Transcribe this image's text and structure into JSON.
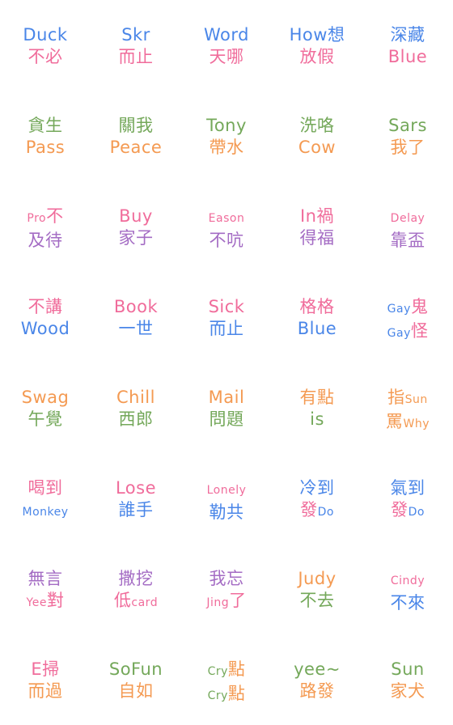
{
  "colors": {
    "blue": "#4a86e8",
    "pink": "#f06c9b",
    "green": "#74a85a",
    "orange": "#f49a52",
    "purple": "#a46cc4"
  },
  "stickers": [
    {
      "l1": [
        {
          "t": "Duck",
          "c": "blue"
        }
      ],
      "l2": [
        {
          "t": "不必",
          "c": "pink"
        }
      ]
    },
    {
      "l1": [
        {
          "t": "Skr",
          "c": "blue"
        }
      ],
      "l2": [
        {
          "t": "而止",
          "c": "pink"
        }
      ]
    },
    {
      "l1": [
        {
          "t": "Word",
          "c": "blue"
        }
      ],
      "l2": [
        {
          "t": "天哪",
          "c": "pink"
        }
      ]
    },
    {
      "l1": [
        {
          "t": "How想",
          "c": "blue"
        }
      ],
      "l2": [
        {
          "t": "放假",
          "c": "pink"
        }
      ]
    },
    {
      "l1": [
        {
          "t": "深藏",
          "c": "blue"
        }
      ],
      "l2": [
        {
          "t": "Blue",
          "c": "pink"
        }
      ]
    },
    {
      "l1": [
        {
          "t": "貪生",
          "c": "green"
        }
      ],
      "l2": [
        {
          "t": "Pass",
          "c": "orange"
        }
      ]
    },
    {
      "l1": [
        {
          "t": "關我",
          "c": "green"
        }
      ],
      "l2": [
        {
          "t": "Peace",
          "c": "orange"
        }
      ]
    },
    {
      "l1": [
        {
          "t": "Tony",
          "c": "green"
        }
      ],
      "l2": [
        {
          "t": "帶水",
          "c": "orange"
        }
      ]
    },
    {
      "l1": [
        {
          "t": "洗咯",
          "c": "green"
        }
      ],
      "l2": [
        {
          "t": "Cow",
          "c": "orange"
        }
      ]
    },
    {
      "l1": [
        {
          "t": "Sars",
          "c": "green"
        }
      ],
      "l2": [
        {
          "t": "我了",
          "c": "orange"
        }
      ]
    },
    {
      "l1": [
        {
          "t": "Pro",
          "c": "pink",
          "s": 1
        },
        {
          "t": "不",
          "c": "pink"
        }
      ],
      "l2": [
        {
          "t": "及待",
          "c": "purple"
        }
      ]
    },
    {
      "l1": [
        {
          "t": "Buy",
          "c": "pink"
        }
      ],
      "l2": [
        {
          "t": "家子",
          "c": "purple"
        }
      ]
    },
    {
      "l1": [
        {
          "t": "Eason",
          "c": "pink",
          "s": 1
        }
      ],
      "l2": [
        {
          "t": "不吭",
          "c": "purple"
        }
      ]
    },
    {
      "l1": [
        {
          "t": "In禍",
          "c": "pink"
        }
      ],
      "l2": [
        {
          "t": "得福",
          "c": "purple"
        }
      ]
    },
    {
      "l1": [
        {
          "t": "Delay",
          "c": "pink",
          "s": 1
        }
      ],
      "l2": [
        {
          "t": "靠盃",
          "c": "purple"
        }
      ]
    },
    {
      "l1": [
        {
          "t": "不講",
          "c": "pink"
        }
      ],
      "l2": [
        {
          "t": "Wood",
          "c": "blue"
        }
      ]
    },
    {
      "l1": [
        {
          "t": "Book",
          "c": "pink"
        }
      ],
      "l2": [
        {
          "t": "一世",
          "c": "blue"
        }
      ]
    },
    {
      "l1": [
        {
          "t": "Sick",
          "c": "pink"
        }
      ],
      "l2": [
        {
          "t": "而止",
          "c": "blue"
        }
      ]
    },
    {
      "l1": [
        {
          "t": "格格",
          "c": "pink"
        }
      ],
      "l2": [
        {
          "t": "Blue",
          "c": "blue"
        }
      ]
    },
    {
      "l1": [
        {
          "t": "Gay",
          "c": "blue",
          "s": 1
        },
        {
          "t": "鬼",
          "c": "pink"
        }
      ],
      "l2": [
        {
          "t": "Gay",
          "c": "blue",
          "s": 1
        },
        {
          "t": "怪",
          "c": "pink"
        }
      ]
    },
    {
      "l1": [
        {
          "t": "Swag",
          "c": "orange"
        }
      ],
      "l2": [
        {
          "t": "午覺",
          "c": "green"
        }
      ]
    },
    {
      "l1": [
        {
          "t": "Chill",
          "c": "orange"
        }
      ],
      "l2": [
        {
          "t": "西郎",
          "c": "green"
        }
      ]
    },
    {
      "l1": [
        {
          "t": "Mail",
          "c": "orange"
        }
      ],
      "l2": [
        {
          "t": "問題",
          "c": "green"
        }
      ]
    },
    {
      "l1": [
        {
          "t": "有點",
          "c": "orange"
        }
      ],
      "l2": [
        {
          "t": "is",
          "c": "green"
        }
      ]
    },
    {
      "l1": [
        {
          "t": "指",
          "c": "orange"
        },
        {
          "t": "Sun",
          "c": "orange",
          "s": 1
        }
      ],
      "l2": [
        {
          "t": "罵",
          "c": "orange"
        },
        {
          "t": "Why",
          "c": "orange",
          "s": 1
        }
      ]
    },
    {
      "l1": [
        {
          "t": "喝到",
          "c": "pink"
        }
      ],
      "l2": [
        {
          "t": "Monkey",
          "c": "blue",
          "s": 1
        }
      ]
    },
    {
      "l1": [
        {
          "t": "Lose",
          "c": "pink"
        }
      ],
      "l2": [
        {
          "t": "誰手",
          "c": "blue"
        }
      ]
    },
    {
      "l1": [
        {
          "t": "Lonely",
          "c": "pink",
          "s": 1
        }
      ],
      "l2": [
        {
          "t": "勒共",
          "c": "blue"
        }
      ]
    },
    {
      "l1": [
        {
          "t": "冷到",
          "c": "blue"
        }
      ],
      "l2": [
        {
          "t": "發",
          "c": "pink"
        },
        {
          "t": "Do",
          "c": "blue",
          "s": 1
        }
      ]
    },
    {
      "l1": [
        {
          "t": "氣到",
          "c": "blue"
        }
      ],
      "l2": [
        {
          "t": "發",
          "c": "pink"
        },
        {
          "t": "Do",
          "c": "blue",
          "s": 1
        }
      ]
    },
    {
      "l1": [
        {
          "t": "無言",
          "c": "purple"
        }
      ],
      "l2": [
        {
          "t": "Yee",
          "c": "pink",
          "s": 1
        },
        {
          "t": "對",
          "c": "pink"
        }
      ]
    },
    {
      "l1": [
        {
          "t": "撒挖",
          "c": "purple"
        }
      ],
      "l2": [
        {
          "t": "低",
          "c": "pink"
        },
        {
          "t": "card",
          "c": "pink",
          "s": 1
        }
      ]
    },
    {
      "l1": [
        {
          "t": "我忘",
          "c": "purple"
        }
      ],
      "l2": [
        {
          "t": "Jing",
          "c": "pink",
          "s": 1
        },
        {
          "t": "了",
          "c": "pink"
        }
      ]
    },
    {
      "l1": [
        {
          "t": "Judy",
          "c": "orange"
        }
      ],
      "l2": [
        {
          "t": "不去",
          "c": "green"
        }
      ]
    },
    {
      "l1": [
        {
          "t": "Cindy",
          "c": "pink",
          "s": 1
        }
      ],
      "l2": [
        {
          "t": "不來",
          "c": "blue"
        }
      ]
    },
    {
      "l1": [
        {
          "t": "E掃",
          "c": "pink"
        }
      ],
      "l2": [
        {
          "t": "而過",
          "c": "orange"
        }
      ]
    },
    {
      "l1": [
        {
          "t": "SoFun",
          "c": "green"
        }
      ],
      "l2": [
        {
          "t": "自如",
          "c": "orange"
        }
      ]
    },
    {
      "l1": [
        {
          "t": "Cry",
          "c": "green",
          "s": 1
        },
        {
          "t": "點",
          "c": "orange"
        }
      ],
      "l2": [
        {
          "t": "Cry",
          "c": "green",
          "s": 1
        },
        {
          "t": "點",
          "c": "orange"
        }
      ]
    },
    {
      "l1": [
        {
          "t": "yee~",
          "c": "green"
        }
      ],
      "l2": [
        {
          "t": "路發",
          "c": "orange"
        }
      ]
    },
    {
      "l1": [
        {
          "t": "Sun",
          "c": "green"
        }
      ],
      "l2": [
        {
          "t": "家犬",
          "c": "orange"
        }
      ]
    }
  ]
}
